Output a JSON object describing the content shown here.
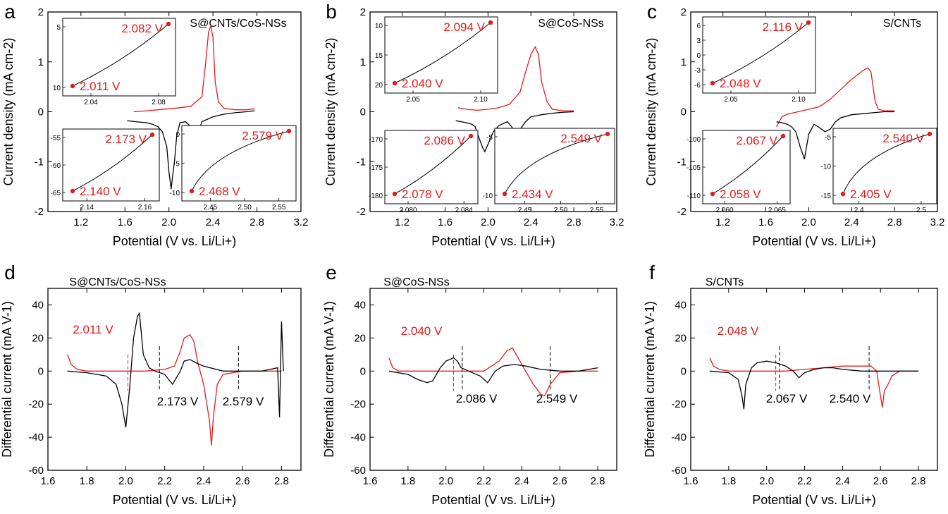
{
  "colors": {
    "red": "#e41a1c",
    "black": "#000000"
  },
  "chart_data": [
    {
      "panel": "a",
      "type": "line",
      "label": "S@CNTs/CoS-NSs",
      "xlabel": "Potential (V vs. Li/Li+)",
      "ylabel": "Current density (mA cm-2)",
      "xlim": [
        0.9,
        3.2
      ],
      "ylim": [
        -2,
        2
      ],
      "xticks": [
        "1.2",
        "1.6",
        "2.0",
        "2.4",
        "2.8",
        "3.2"
      ],
      "yticks": [
        "-2",
        "-1",
        "0",
        "1",
        "2"
      ],
      "series": [
        {
          "color": "red",
          "x": [
            1.68,
            1.8,
            1.9,
            2.0,
            2.1,
            2.2,
            2.3,
            2.33,
            2.36,
            2.38,
            2.4,
            2.42,
            2.45,
            2.5,
            2.6,
            2.7,
            2.78
          ],
          "y": [
            0.0,
            0.02,
            0.04,
            0.06,
            0.08,
            0.11,
            0.3,
            0.9,
            1.6,
            1.72,
            1.5,
            0.6,
            0.2,
            0.07,
            0.04,
            0.04,
            0.06
          ]
        },
        {
          "color": "black",
          "x": [
            2.78,
            2.7,
            2.6,
            2.5,
            2.4,
            2.3,
            2.26,
            2.24,
            2.2,
            2.15,
            2.1,
            2.07,
            2.05,
            2.03,
            2.02,
            2.0,
            1.98,
            1.94,
            1.9,
            1.85,
            1.8,
            1.7,
            1.62
          ],
          "y": [
            0.02,
            0.0,
            -0.02,
            -0.05,
            -0.1,
            -0.2,
            -0.45,
            -0.5,
            -0.3,
            -0.2,
            -0.22,
            -0.5,
            -1.0,
            -1.35,
            -1.55,
            -1.2,
            -0.7,
            -0.4,
            -0.3,
            -0.25,
            -0.22,
            -0.2,
            -0.18
          ]
        }
      ],
      "insets": [
        {
          "xticks": [
            "2.04",
            "2.08"
          ],
          "yticks": [
            "5",
            "10"
          ],
          "points": [
            "2.082 V",
            "2.011 V"
          ]
        },
        {
          "xticks": [
            "2.14",
            "2.16"
          ],
          "yticks": [
            "-55",
            "-60",
            "-65"
          ],
          "points": [
            "2.173 V",
            "2.140 V"
          ]
        },
        {
          "xticks": [
            "2.45",
            "2.50",
            "2.55"
          ],
          "yticks": [
            "0",
            "-5",
            "-10"
          ],
          "points": [
            "2.579 V",
            "2.468 V"
          ]
        }
      ]
    },
    {
      "panel": "b",
      "type": "line",
      "label": "S@CoS-NSs",
      "xlabel": "Potential (V vs. Li/Li+)",
      "ylabel": "Current density (mA cm-2)",
      "xlim": [
        0.9,
        3.2
      ],
      "ylim": [
        -2,
        2
      ],
      "xticks": [
        "1.2",
        "1.6",
        "2.0",
        "2.4",
        "2.8",
        "3.2"
      ],
      "yticks": [
        "-2",
        "-1",
        "0",
        "1",
        "2"
      ],
      "series": [
        {
          "color": "red",
          "x": [
            1.72,
            1.8,
            1.9,
            2.0,
            2.1,
            2.2,
            2.3,
            2.35,
            2.4,
            2.44,
            2.47,
            2.5,
            2.55,
            2.6,
            2.7,
            2.8
          ],
          "y": [
            0.08,
            0.05,
            0.03,
            0.05,
            0.08,
            0.15,
            0.4,
            0.8,
            1.15,
            1.3,
            1.15,
            0.6,
            0.2,
            0.05,
            0.02,
            0.02
          ]
        },
        {
          "color": "black",
          "x": [
            2.8,
            2.7,
            2.6,
            2.5,
            2.4,
            2.35,
            2.3,
            2.26,
            2.22,
            2.18,
            2.1,
            2.05,
            2.0,
            1.97,
            1.95,
            1.92,
            1.88,
            1.85,
            1.8,
            1.75,
            1.7
          ],
          "y": [
            0.0,
            -0.01,
            -0.03,
            -0.06,
            -0.1,
            -0.2,
            -0.35,
            -0.45,
            -0.3,
            -0.2,
            -0.28,
            -0.4,
            -0.65,
            -0.8,
            -0.72,
            -0.55,
            -0.3,
            -0.25,
            -0.22,
            -0.2,
            -0.18
          ]
        }
      ],
      "insets": [
        {
          "xticks": [
            "2.05",
            "2.10"
          ],
          "yticks": [
            "10",
            "15",
            "20"
          ],
          "points": [
            "2.094 V",
            "2.040 V"
          ]
        },
        {
          "xticks": [
            "2.080",
            "2.084"
          ],
          "yticks": [
            "-170",
            "-175",
            "-180"
          ],
          "points": [
            "2.086 V",
            "2.078 V"
          ]
        },
        {
          "xticks": [
            "2.45",
            "2.50",
            "2.55"
          ],
          "yticks": [
            "-5",
            "-10"
          ],
          "points": [
            "2.549 V",
            "2.434 V"
          ]
        }
      ]
    },
    {
      "panel": "c",
      "type": "line",
      "label": "S/CNTs",
      "xlabel": "Potential (V vs. Li/Li+)",
      "ylabel": "Current density (mA cm-2)",
      "xlim": [
        0.9,
        3.2
      ],
      "ylim": [
        -2,
        2
      ],
      "xticks": [
        "1.2",
        "1.6",
        "2.0",
        "2.4",
        "2.8",
        "3.2"
      ],
      "yticks": [
        "-2",
        "-1",
        "0",
        "1",
        "2"
      ],
      "series": [
        {
          "color": "red",
          "x": [
            1.7,
            1.75,
            1.8,
            1.9,
            2.0,
            2.1,
            2.2,
            2.3,
            2.4,
            2.5,
            2.55,
            2.58,
            2.6,
            2.62,
            2.65,
            2.7,
            2.8
          ],
          "y": [
            -0.3,
            -0.1,
            -0.05,
            0.0,
            0.05,
            0.1,
            0.25,
            0.45,
            0.65,
            0.82,
            0.88,
            0.8,
            0.5,
            0.2,
            0.05,
            0.02,
            0.02
          ]
        },
        {
          "color": "black",
          "x": [
            2.8,
            2.7,
            2.6,
            2.5,
            2.4,
            2.3,
            2.25,
            2.2,
            2.15,
            2.1,
            2.05,
            2.0,
            1.96,
            1.92,
            1.88,
            1.84,
            1.8,
            1.75,
            1.7
          ],
          "y": [
            0.0,
            0.0,
            -0.02,
            -0.04,
            -0.06,
            -0.12,
            -0.2,
            -0.35,
            -0.4,
            -0.32,
            -0.25,
            -0.45,
            -0.95,
            -0.7,
            -0.4,
            -0.3,
            -0.25,
            -0.22,
            -0.2
          ]
        }
      ],
      "insets": [
        {
          "xticks": [
            "2.05",
            "2.10"
          ],
          "yticks": [
            "6",
            "3",
            "0",
            "-3",
            "-6"
          ],
          "points": [
            "2.116 V",
            "2.048 V"
          ]
        },
        {
          "xticks": [
            "2.060",
            "2.065"
          ],
          "yticks": [
            "-100",
            "-105",
            "-110"
          ],
          "points": [
            "2.067 V",
            "2.058 V"
          ]
        },
        {
          "xticks": [
            "2.4",
            "2.5"
          ],
          "yticks": [
            "-5",
            "-10",
            "-15"
          ],
          "points": [
            "2.540 V",
            "2.405 V"
          ]
        }
      ]
    },
    {
      "panel": "d",
      "type": "line",
      "label": "S@CNTs/CoS-NSs",
      "xlabel": "Potential (V vs. Li/Li+)",
      "ylabel": "Differential current (mA V-1)",
      "xlim": [
        1.6,
        2.9
      ],
      "ylim": [
        -60,
        50
      ],
      "xticks": [
        "1.6",
        "1.8",
        "2.0",
        "2.2",
        "2.4",
        "2.6",
        "2.8"
      ],
      "yticks": [
        "-60",
        "-40",
        "-20",
        "0",
        "20",
        "40"
      ],
      "series": [
        {
          "color": "red",
          "x": [
            1.7,
            1.72,
            1.75,
            1.8,
            1.9,
            2.0,
            2.1,
            2.2,
            2.25,
            2.28,
            2.3,
            2.33,
            2.35,
            2.37,
            2.4,
            2.43,
            2.44,
            2.45,
            2.47,
            2.5,
            2.6,
            2.7,
            2.8
          ],
          "y": [
            10,
            4,
            1,
            0,
            0,
            0,
            0,
            1,
            3,
            12,
            20,
            22,
            18,
            5,
            -8,
            -30,
            -45,
            -28,
            -8,
            -2,
            0,
            0,
            0
          ]
        },
        {
          "color": "black",
          "x": [
            1.7,
            1.8,
            1.9,
            1.95,
            1.98,
            2.0,
            2.02,
            2.04,
            2.06,
            2.07,
            2.09,
            2.12,
            2.15,
            2.2,
            2.24,
            2.28,
            2.3,
            2.33,
            2.36,
            2.4,
            2.5,
            2.6,
            2.7,
            2.78,
            2.79,
            2.8,
            2.81
          ],
          "y": [
            0,
            -1,
            -3,
            -8,
            -20,
            -34,
            -10,
            20,
            33,
            35,
            10,
            2,
            0,
            -2,
            -8,
            0,
            6,
            7,
            5,
            3,
            0,
            0,
            0,
            2,
            -28,
            30,
            0
          ]
        }
      ],
      "guides": [
        2.011,
        2.173,
        2.579
      ],
      "annotations": [
        "2.011 V",
        "2.173 V",
        "2.579 V"
      ]
    },
    {
      "panel": "e",
      "type": "line",
      "label": "S@CoS-NSs",
      "xlabel": "Potential (V vs. Li/Li+)",
      "ylabel": "Differential current (mA V-1)",
      "xlim": [
        1.6,
        2.9
      ],
      "ylim": [
        -60,
        50
      ],
      "xticks": [
        "1.6",
        "1.8",
        "2.0",
        "2.2",
        "2.4",
        "2.6",
        "2.8"
      ],
      "yticks": [
        "-60",
        "-40",
        "-20",
        "0",
        "20",
        "40"
      ],
      "series": [
        {
          "color": "red",
          "x": [
            1.7,
            1.72,
            1.75,
            1.8,
            1.9,
            2.0,
            2.1,
            2.2,
            2.28,
            2.32,
            2.35,
            2.38,
            2.42,
            2.46,
            2.5,
            2.52,
            2.55,
            2.6,
            2.7,
            2.8
          ],
          "y": [
            8,
            2,
            0,
            0,
            0,
            0,
            0,
            0,
            6,
            12,
            14,
            8,
            0,
            -8,
            -14,
            -15,
            -8,
            -1,
            0,
            0
          ]
        },
        {
          "color": "black",
          "x": [
            1.7,
            1.8,
            1.85,
            1.9,
            1.93,
            1.97,
            2.0,
            2.04,
            2.06,
            2.08,
            2.12,
            2.18,
            2.22,
            2.26,
            2.3,
            2.36,
            2.42,
            2.5,
            2.6,
            2.7,
            2.8
          ],
          "y": [
            0,
            -2,
            -5,
            -7,
            -6,
            2,
            6,
            8,
            6,
            2,
            0,
            -3,
            -7,
            0,
            3,
            4,
            3,
            1,
            0,
            0,
            2
          ]
        }
      ],
      "guides": [
        2.04,
        2.086,
        2.549
      ],
      "annotations": [
        "2.040 V",
        "2.086 V",
        "2.549 V"
      ]
    },
    {
      "panel": "f",
      "type": "line",
      "label": "S/CNTs",
      "xlabel": "Potential (V vs. Li/Li+)",
      "ylabel": "Differential current (mA V-1)",
      "xlim": [
        1.6,
        2.9
      ],
      "ylim": [
        -60,
        50
      ],
      "xticks": [
        "1.6",
        "1.8",
        "2.0",
        "2.2",
        "2.4",
        "2.6",
        "2.8"
      ],
      "yticks": [
        "-60",
        "-40",
        "-20",
        "0",
        "20",
        "40"
      ],
      "series": [
        {
          "color": "red",
          "x": [
            1.7,
            1.72,
            1.75,
            1.8,
            1.9,
            2.0,
            2.1,
            2.2,
            2.3,
            2.4,
            2.5,
            2.55,
            2.58,
            2.6,
            2.61,
            2.62,
            2.64,
            2.66,
            2.7,
            2.8
          ],
          "y": [
            8,
            3,
            1,
            0,
            0,
            0,
            0,
            1,
            2,
            3,
            3,
            3,
            0,
            -15,
            -22,
            -12,
            -8,
            -3,
            0,
            0
          ]
        },
        {
          "color": "black",
          "x": [
            1.7,
            1.8,
            1.85,
            1.87,
            1.88,
            1.89,
            1.92,
            1.95,
            2.0,
            2.05,
            2.1,
            2.14,
            2.17,
            2.2,
            2.25,
            2.3,
            2.35,
            2.4,
            2.5,
            2.6,
            2.7,
            2.8
          ],
          "y": [
            0,
            -1,
            -5,
            -15,
            -23,
            -8,
            2,
            5,
            6,
            5,
            3,
            0,
            -4,
            -1,
            1,
            2,
            2,
            1,
            0,
            0,
            0,
            0
          ]
        }
      ],
      "guides": [
        2.048,
        2.067,
        2.54
      ],
      "annotations": [
        "2.048 V",
        "2.067 V",
        "2.540 V"
      ]
    }
  ]
}
